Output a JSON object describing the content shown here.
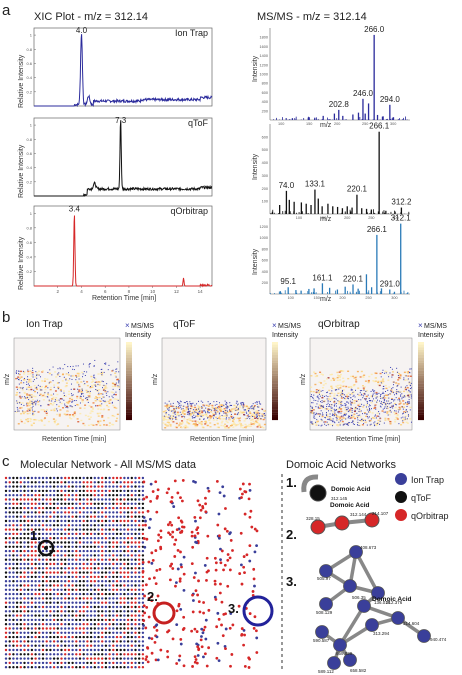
{
  "panel_letters": {
    "a": "a",
    "b": "b",
    "c": "c"
  },
  "panel_a": {
    "xic_title": "XIC Plot - m/z = 312.14",
    "msms_title": "MS/MS - m/z = 312.14",
    "xic_ylabel": "Relative Intensity",
    "xic_xlabel": "Retention Time [min]",
    "msms_ylabel": "Intensity",
    "msms_xlabel": "m/z"
  },
  "panel_b": {
    "ylabel": "m/z",
    "xlabel": "Retention Time [min]",
    "legend_marker": "×",
    "legend_label": "MS/MS",
    "colorbar_label": "Intensity"
  },
  "panel_c": {
    "network_title": "Molecular Network - All MS/MS data",
    "domoic_title": "Domoic Acid Networks",
    "markers": [
      "1.",
      "2.",
      "3."
    ],
    "legend": [
      {
        "label": "Ion Trap",
        "color": "#3a3f9a"
      },
      {
        "label": "qToF",
        "color": "#111111"
      },
      {
        "label": "qOrbitrap",
        "color": "#d62728"
      }
    ],
    "cluster1": {
      "name": "Domoic Acid",
      "mz": "312.145"
    },
    "cluster2": {
      "name": "Domoic Acid",
      "nodes": [
        "328.15",
        "312.144",
        "214.107"
      ]
    },
    "cluster3": {
      "name": "Domoic Acid",
      "nodes": [
        "505.97",
        "408.673",
        "506.35",
        "508.129",
        "136.016",
        "312.376",
        "314.604",
        "313.294",
        "940.474",
        "590.587",
        "659.829",
        "589.112",
        "658.582"
      ]
    }
  },
  "chart_data": [
    {
      "type": "line",
      "title": "Ion Trap",
      "instrument": "Ion Trap",
      "xlabel": "Retention Time [min]",
      "ylabel": "Relative Intensity",
      "x_ticks": [
        2,
        4,
        6,
        8,
        10,
        12,
        14
      ],
      "xlim": [
        0,
        15
      ],
      "y_ticks": [
        0.2,
        0.4,
        0.6,
        0.8,
        1.0
      ],
      "ylim": [
        0,
        1.1
      ],
      "peak_labels": [
        {
          "x": 4.0,
          "label": "4.0"
        }
      ],
      "peaks": [
        [
          4.0,
          1.0,
          0.15
        ],
        [
          4.6,
          0.12,
          0.2
        ]
      ],
      "baseline_steps": [
        [
          0,
          0.0
        ],
        [
          3.4,
          0.02
        ],
        [
          5,
          0.07
        ],
        [
          9,
          0.09
        ],
        [
          14,
          0.12
        ]
      ],
      "color": "#2b2b9c"
    },
    {
      "type": "line",
      "title": "qToF",
      "instrument": "qToF",
      "xlabel": "Retention Time [min]",
      "ylabel": "Relative Intensity",
      "x_ticks": [
        2,
        4,
        6,
        8,
        10,
        12,
        14
      ],
      "xlim": [
        0,
        15
      ],
      "y_ticks": [
        0.2,
        0.4,
        0.6,
        0.8,
        1.0
      ],
      "ylim": [
        0,
        1.1
      ],
      "peak_labels": [
        {
          "x": 7.3,
          "label": "7.3"
        }
      ],
      "peaks": [
        [
          7.3,
          1.0,
          0.1
        ],
        [
          5.1,
          0.08,
          0.2
        ]
      ],
      "baseline_steps": [
        [
          0,
          0.0
        ],
        [
          4.2,
          0.02
        ],
        [
          4.5,
          0.1
        ],
        [
          14,
          0.12
        ]
      ],
      "color": "#111111"
    },
    {
      "type": "line",
      "title": "qOrbitrap",
      "instrument": "qOrbitrap",
      "xlabel": "Retention Time [min]",
      "ylabel": "Relative Intensity",
      "x_ticks": [
        2,
        4,
        6,
        8,
        10,
        12,
        14
      ],
      "xlim": [
        0,
        15
      ],
      "y_ticks": [
        0.2,
        0.4,
        0.6,
        0.8,
        1.0
      ],
      "ylim": [
        0,
        1.1
      ],
      "peak_labels": [
        {
          "x": 3.4,
          "label": "3.4"
        }
      ],
      "peaks": [
        [
          3.4,
          1.0,
          0.1
        ],
        [
          12.6,
          0.11,
          0.08
        ]
      ],
      "baseline_steps": [
        [
          0,
          0.0
        ],
        [
          14,
          0.01
        ]
      ],
      "color": "#d62728"
    },
    {
      "type": "bar",
      "title": "Ion Trap MS/MS",
      "instrument": "Ion Trap",
      "xlabel": "m/z",
      "ylabel": "Intensity",
      "xlim": [
        80,
        330
      ],
      "x_ticks": [
        100,
        150,
        200,
        250,
        300
      ],
      "y_ticks": [
        200,
        400,
        600,
        800,
        1000,
        1200,
        1400,
        1600,
        1800
      ],
      "ylim": [
        0,
        2000
      ],
      "peaks": [
        [
          202.8,
          220
        ],
        [
          246.0,
          460
        ],
        [
          256,
          360
        ],
        [
          266.0,
          1850
        ],
        [
          294.0,
          330
        ],
        [
          150,
          60
        ],
        [
          175,
          90
        ],
        [
          195,
          140
        ],
        [
          210,
          90
        ],
        [
          228,
          120
        ],
        [
          238,
          160
        ],
        [
          250,
          140
        ],
        [
          272,
          110
        ],
        [
          282,
          80
        ],
        [
          300,
          60
        ],
        [
          120,
          40
        ],
        [
          160,
          50
        ]
      ],
      "peak_labels": [
        {
          "x": 202.8,
          "label": "202.8"
        },
        {
          "x": 246.0,
          "label": "246.0"
        },
        {
          "x": 266.0,
          "label": "266.0"
        },
        {
          "x": 294.0,
          "label": "294.0"
        }
      ],
      "color": "#2b2b9c"
    },
    {
      "type": "bar",
      "title": "qToF MS/MS",
      "instrument": "qToF",
      "xlabel": "m/z",
      "ylabel": "Intensity",
      "xlim": [
        40,
        330
      ],
      "x_ticks": [
        100,
        150,
        200,
        250,
        300
      ],
      "y_ticks": [
        100,
        200,
        300,
        400,
        500,
        600
      ],
      "ylim": [
        0,
        700
      ],
      "peaks": [
        [
          74.0,
          180
        ],
        [
          133.1,
          190
        ],
        [
          220.1,
          150
        ],
        [
          266.1,
          640
        ],
        [
          312.2,
          50
        ],
        [
          60,
          70
        ],
        [
          80,
          110
        ],
        [
          90,
          95
        ],
        [
          105,
          90
        ],
        [
          115,
          80
        ],
        [
          125,
          70
        ],
        [
          140,
          120
        ],
        [
          148,
          60
        ],
        [
          160,
          80
        ],
        [
          170,
          60
        ],
        [
          180,
          55
        ],
        [
          190,
          45
        ],
        [
          200,
          60
        ],
        [
          210,
          50
        ],
        [
          230,
          45
        ],
        [
          240,
          40
        ],
        [
          250,
          35
        ],
        [
          280,
          25
        ]
      ],
      "peak_labels": [
        {
          "x": 74.0,
          "label": "74.0"
        },
        {
          "x": 133.1,
          "label": "133.1"
        },
        {
          "x": 220.1,
          "label": "220.1"
        },
        {
          "x": 266.1,
          "label": "266.1"
        },
        {
          "x": 312.2,
          "label": "312.2"
        }
      ],
      "color": "#111111"
    },
    {
      "type": "bar",
      "title": "qOrbitrap MS/MS",
      "instrument": "qOrbitrap",
      "xlabel": "m/z",
      "ylabel": "Intensity",
      "xlim": [
        60,
        330
      ],
      "x_ticks": [
        100,
        150,
        200,
        250,
        300
      ],
      "y_ticks": [
        200,
        400,
        600,
        800,
        1000,
        1200
      ],
      "ylim": [
        0,
        1350
      ],
      "peaks": [
        [
          95.1,
          120
        ],
        [
          161.1,
          190
        ],
        [
          220.1,
          170
        ],
        [
          266.1,
          1050
        ],
        [
          312.1,
          1250
        ],
        [
          291.0,
          80
        ],
        [
          80,
          50
        ],
        [
          110,
          70
        ],
        [
          120,
          60
        ],
        [
          135,
          90
        ],
        [
          145,
          100
        ],
        [
          175,
          110
        ],
        [
          190,
          80
        ],
        [
          205,
          130
        ],
        [
          230,
          95
        ],
        [
          246,
          350
        ],
        [
          256,
          120
        ],
        [
          275,
          100
        ],
        [
          300,
          40
        ]
      ],
      "peak_labels": [
        {
          "x": 95.1,
          "label": "95.1"
        },
        {
          "x": 161.1,
          "label": "161.1"
        },
        {
          "x": 220.1,
          "label": "220.1"
        },
        {
          "x": 266.1,
          "label": "266.1"
        },
        {
          "x": 291.0,
          "label": "291.0"
        },
        {
          "x": 312.1,
          "label": "312.1"
        }
      ],
      "color": "#2a7ab8"
    },
    {
      "type": "heatmap",
      "title": "Ion Trap",
      "xlabel": "Retention Time [min]",
      "ylabel": "m/z",
      "legend": [
        "MS/MS",
        "Intensity"
      ]
    },
    {
      "type": "heatmap",
      "title": "qToF",
      "xlabel": "Retention Time [min]",
      "ylabel": "m/z",
      "legend": [
        "MS/MS",
        "Intensity"
      ]
    },
    {
      "type": "heatmap",
      "title": "qOrbitrap",
      "xlabel": "Retention Time [min]",
      "ylabel": "m/z",
      "legend": [
        "MS/MS",
        "Intensity"
      ]
    }
  ]
}
